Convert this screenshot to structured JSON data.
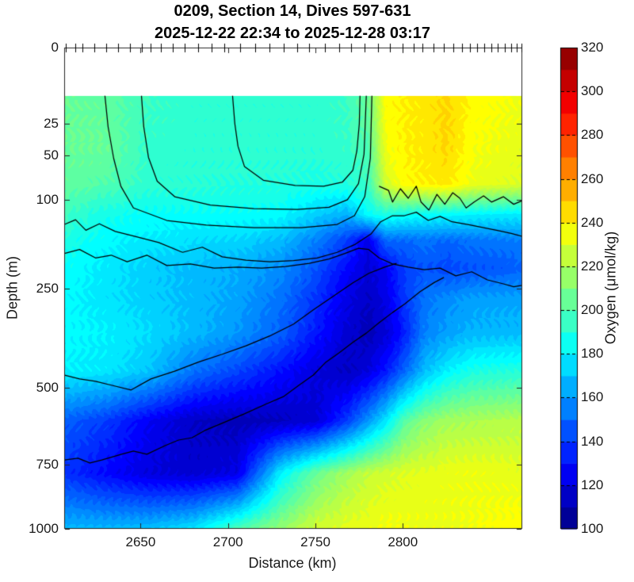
{
  "title": {
    "line1": "0209, Section 14, Dives 597-631",
    "line2": "2025-12-22 22:34 to 2025-12-28 03:17"
  },
  "axes": {
    "x": {
      "label": "Distance (km)",
      "range_km": [
        2606.3,
        2868.3
      ],
      "ticks": [
        "2650",
        "2700",
        "2750",
        "2800"
      ],
      "tick_values": [
        2650,
        2700,
        2750,
        2800
      ]
    },
    "y": {
      "label": "Depth (m)",
      "scale": "sqrt",
      "range_m": [
        0,
        1000
      ],
      "ticks": [
        "0",
        "25",
        "50",
        "100",
        "250",
        "500",
        "750",
        "1000"
      ],
      "tick_values": [
        0,
        25,
        50,
        100,
        250,
        500,
        750,
        1000
      ]
    },
    "colorbar": {
      "label": "Oxygen (μmol/kg)",
      "range": [
        100,
        320
      ],
      "step": 10,
      "ticks": [
        "100",
        "120",
        "140",
        "160",
        "180",
        "200",
        "220",
        "240",
        "260",
        "280",
        "300",
        "320"
      ],
      "tick_values": [
        100,
        120,
        140,
        160,
        180,
        200,
        220,
        240,
        260,
        280,
        300,
        320
      ]
    }
  },
  "colors": {
    "background": "#ffffff",
    "axis": "#262626",
    "contour_line": "#000000",
    "text": "#1a1a1a",
    "colormap": "jet"
  },
  "chart_data": {
    "type": "heatmap",
    "title": "0209, Section 14, Dives 597-631",
    "subtitle": "2025-12-22 22:34 to 2025-12-28 03:17",
    "xlabel": "Distance (km)",
    "ylabel": "Depth (m)",
    "value_label": "Oxygen (μmol/kg)",
    "colormap": "jet",
    "clim": [
      100,
      320
    ],
    "contour_fill_step": 5,
    "surface_gap_m": 10,
    "x_km": [
      2606,
      2630,
      2655,
      2680,
      2705,
      2730,
      2750,
      2768,
      2780,
      2790,
      2800,
      2812,
      2825,
      2840,
      2868
    ],
    "depth_m": [
      12,
      40,
      80,
      120,
      160,
      210,
      270,
      350,
      450,
      600,
      780,
      1000
    ],
    "oxygen_umol_kg": [
      [
        205,
        203,
        195,
        192,
        192,
        192,
        192,
        195,
        205,
        238,
        240,
        242,
        246,
        238,
        234
      ],
      [
        205,
        205,
        193,
        192,
        192,
        192,
        192,
        194,
        200,
        235,
        240,
        242,
        246,
        236,
        232
      ],
      [
        203,
        200,
        192,
        191,
        190,
        190,
        188,
        190,
        195,
        228,
        238,
        240,
        242,
        233,
        230
      ],
      [
        196,
        186,
        184,
        184,
        184,
        182,
        172,
        165,
        183,
        188,
        185,
        183,
        182,
        180,
        178
      ],
      [
        188,
        182,
        178,
        176,
        174,
        168,
        155,
        140,
        122,
        150,
        150,
        152,
        150,
        152,
        155
      ],
      [
        184,
        178,
        172,
        168,
        165,
        158,
        145,
        128,
        118,
        125,
        140,
        145,
        142,
        145,
        148
      ],
      [
        182,
        177,
        172,
        168,
        163,
        152,
        138,
        122,
        115,
        122,
        138,
        152,
        158,
        162,
        163
      ],
      [
        182,
        180,
        175,
        168,
        160,
        148,
        132,
        118,
        112,
        118,
        132,
        155,
        162,
        167,
        168
      ],
      [
        180,
        178,
        170,
        152,
        142,
        130,
        120,
        114,
        120,
        132,
        148,
        168,
        180,
        188,
        190
      ],
      [
        148,
        140,
        125,
        115,
        112,
        114,
        118,
        140,
        160,
        178,
        200,
        212,
        218,
        220,
        222
      ],
      [
        138,
        128,
        120,
        117,
        122,
        180,
        205,
        218,
        225,
        228,
        230,
        232,
        233,
        234,
        232
      ],
      [
        168,
        168,
        170,
        178,
        200,
        215,
        228,
        232,
        234,
        236,
        235,
        234,
        234,
        235,
        238
      ]
    ],
    "contour_lines_km_depth": [
      [
        [
          2629.6,
          10
        ],
        [
          2631.4,
          27
        ],
        [
          2634.6,
          53
        ],
        [
          2638.7,
          83
        ],
        [
          2645.9,
          111
        ],
        [
          2665,
          129
        ],
        [
          2687.6,
          136
        ],
        [
          2714.8,
          140
        ],
        [
          2742,
          140
        ],
        [
          2762.4,
          135
        ],
        [
          2772.3,
          122
        ],
        [
          2778.2,
          96
        ],
        [
          2781.4,
          53
        ],
        [
          2782.3,
          10
        ]
      ],
      [
        [
          2650.5,
          10
        ],
        [
          2651.8,
          27
        ],
        [
          2654.5,
          52
        ],
        [
          2659.5,
          77
        ],
        [
          2669.5,
          96
        ],
        [
          2689.9,
          107
        ],
        [
          2714.8,
          112
        ],
        [
          2739.7,
          113
        ],
        [
          2757.8,
          110
        ],
        [
          2768.3,
          100
        ],
        [
          2774.6,
          80
        ],
        [
          2777.8,
          49
        ],
        [
          2779.1,
          10
        ]
      ],
      [
        [
          2702.6,
          10
        ],
        [
          2703.9,
          25
        ],
        [
          2705.7,
          42
        ],
        [
          2709.4,
          61
        ],
        [
          2720.2,
          76
        ],
        [
          2738.4,
          82
        ],
        [
          2754.7,
          83
        ],
        [
          2765.5,
          78
        ],
        [
          2771.4,
          65
        ],
        [
          2773.7,
          46
        ],
        [
          2775.1,
          25
        ],
        [
          2775.5,
          10
        ]
      ],
      [
        [
          2786.4,
          83
        ],
        [
          2791.8,
          88
        ],
        [
          2794.1,
          103
        ],
        [
          2798.6,
          86
        ],
        [
          2803.1,
          98
        ],
        [
          2807.7,
          83
        ],
        [
          2810.4,
          103
        ],
        [
          2814.9,
          114
        ],
        [
          2819.5,
          93
        ],
        [
          2824,
          106
        ],
        [
          2828.5,
          91
        ],
        [
          2832.6,
          98
        ],
        [
          2836.2,
          111
        ],
        [
          2840.8,
          103
        ],
        [
          2846.2,
          95
        ],
        [
          2850.7,
          103
        ],
        [
          2857.5,
          96
        ],
        [
          2863.4,
          106
        ],
        [
          2868.4,
          101
        ]
      ],
      [
        [
          2606.5,
          135
        ],
        [
          2612.8,
          128
        ],
        [
          2618.7,
          144
        ],
        [
          2626.4,
          134
        ],
        [
          2635.5,
          146
        ],
        [
          2646.8,
          154
        ],
        [
          2660.4,
          164
        ],
        [
          2674,
          181
        ],
        [
          2685.3,
          172
        ],
        [
          2696.7,
          189
        ],
        [
          2710.3,
          195
        ],
        [
          2723.9,
          198
        ],
        [
          2737.5,
          196
        ],
        [
          2751,
          191
        ],
        [
          2762.4,
          181
        ],
        [
          2772.8,
          167
        ],
        [
          2781.8,
          150
        ],
        [
          2787.3,
          131
        ],
        [
          2794.1,
          122
        ],
        [
          2800.9,
          122
        ],
        [
          2807.7,
          117
        ],
        [
          2814.5,
          129
        ],
        [
          2821.3,
          123
        ],
        [
          2828.1,
          131
        ],
        [
          2837.1,
          135
        ],
        [
          2846.2,
          140
        ],
        [
          2855.2,
          145
        ],
        [
          2862,
          149
        ],
        [
          2868.4,
          154
        ]
      ],
      [
        [
          2606.5,
          183
        ],
        [
          2615.1,
          176
        ],
        [
          2624.2,
          191
        ],
        [
          2633.2,
          186
        ],
        [
          2642.3,
          198
        ],
        [
          2653.6,
          186
        ],
        [
          2665,
          205
        ],
        [
          2678.5,
          202
        ],
        [
          2692.1,
          210
        ],
        [
          2705.7,
          208
        ],
        [
          2719.3,
          210
        ],
        [
          2732.9,
          207
        ],
        [
          2746.5,
          201
        ],
        [
          2757.8,
          193
        ],
        [
          2766.9,
          183
        ],
        [
          2774.6,
          174
        ],
        [
          2780.5,
          176
        ],
        [
          2786.4,
          191
        ],
        [
          2794.1,
          202
        ],
        [
          2803.1,
          208
        ],
        [
          2812.2,
          213
        ],
        [
          2821.3,
          210
        ],
        [
          2830.3,
          225
        ],
        [
          2839.4,
          217
        ],
        [
          2848.4,
          233
        ],
        [
          2857.5,
          241
        ],
        [
          2863.4,
          247
        ],
        [
          2868.4,
          244
        ]
      ],
      [
        [
          2606.5,
          463
        ],
        [
          2615.1,
          474
        ],
        [
          2624.2,
          481
        ],
        [
          2633.2,
          492
        ],
        [
          2644.6,
          506
        ],
        [
          2655.9,
          474
        ],
        [
          2669.5,
          452
        ],
        [
          2683.1,
          427
        ],
        [
          2696.7,
          406
        ],
        [
          2710.3,
          384
        ],
        [
          2723.9,
          359
        ],
        [
          2737.5,
          330
        ],
        [
          2748.8,
          297
        ],
        [
          2760.1,
          267
        ],
        [
          2771.4,
          239
        ],
        [
          2780.5,
          220
        ],
        [
          2789.6,
          208
        ],
        [
          2796.4,
          201
        ]
      ],
      [
        [
          2606.5,
          734
        ],
        [
          2614.2,
          728
        ],
        [
          2621,
          745
        ],
        [
          2627.8,
          734
        ],
        [
          2639.1,
          714
        ],
        [
          2645.9,
          703
        ],
        [
          2653.6,
          714
        ],
        [
          2664,
          684
        ],
        [
          2671.7,
          665
        ],
        [
          2679.4,
          657
        ],
        [
          2686.7,
          633
        ],
        [
          2697.6,
          607
        ],
        [
          2709.4,
          579
        ],
        [
          2721.6,
          549
        ],
        [
          2732,
          525
        ],
        [
          2741.1,
          490
        ],
        [
          2748.8,
          463
        ],
        [
          2756,
          427
        ],
        [
          2763.7,
          402
        ],
        [
          2771.4,
          375
        ],
        [
          2779.1,
          352
        ],
        [
          2786.4,
          327
        ],
        [
          2794.1,
          303
        ],
        [
          2801.3,
          283
        ],
        [
          2809.9,
          257
        ],
        [
          2818.1,
          238
        ],
        [
          2823.5,
          228
        ]
      ]
    ],
    "dive_tick_km": [
      2607.4,
      2612.8,
      2616.5,
      2623.3,
      2630.1,
      2636.9,
      2643.7,
      2650.5,
      2655.9,
      2661.8,
      2668.6,
      2675.4,
      2683.1,
      2690.8,
      2698,
      2707.1,
      2715.7,
      2723.9,
      2732,
      2739.7,
      2746.5,
      2755.6,
      2763.7,
      2770.5,
      2778.2,
      2785.9,
      2792.7,
      2800,
      2806.3,
      2811.3,
      2817.6,
      2823.5,
      2828.9,
      2833.9,
      2838.5,
      2842.6,
      2846.6,
      2850.7,
      2854.3,
      2858.4,
      2862,
      2865.2,
      2867.9
    ]
  }
}
